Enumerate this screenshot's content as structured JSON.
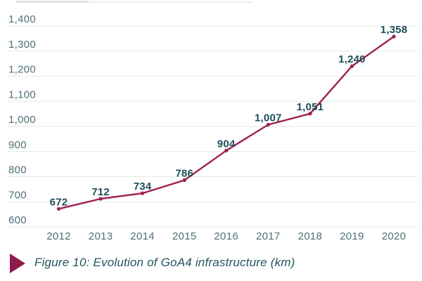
{
  "chart_data": {
    "type": "line",
    "title": "",
    "xlabel": "",
    "ylabel": "",
    "categories": [
      "2012",
      "2013",
      "2014",
      "2015",
      "2016",
      "2017",
      "2018",
      "2019",
      "2020"
    ],
    "values": [
      672,
      712,
      734,
      786,
      904,
      1007,
      1051,
      1240,
      1358
    ],
    "point_labels": [
      "672",
      "712",
      "734",
      "786",
      "904",
      "1,007",
      "1,051",
      "1,240",
      "1,358"
    ],
    "ylim": [
      600,
      1400
    ],
    "ytick_values": [
      600,
      700,
      800,
      900,
      1000,
      1100,
      1200,
      1300,
      1400
    ],
    "ytick_labels": [
      "600",
      "700",
      "800",
      "900",
      "1,000",
      "1,100",
      "1,200",
      "1,300",
      "1,400"
    ],
    "grid": true,
    "legend_position": "none",
    "line_color": "#9e2150",
    "point_color": "#9e2150",
    "point_label_color": "#1d4e5a",
    "tick_label_color": "#4e6f78",
    "grid_color": "#e5e7e7"
  },
  "caption": {
    "icon": "triangle-right-icon",
    "icon_color": "#8e1c4a",
    "text": "Figure 10: Evolution of GoA4 infrastructure (km)",
    "text_color": "#20565f"
  }
}
